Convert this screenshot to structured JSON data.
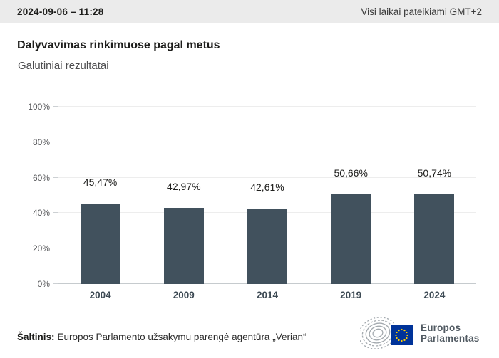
{
  "topbar": {
    "datetime": "2024-09-06 – 11:28",
    "timezone_note": "Visi laikai pateikiami GMT+2"
  },
  "header": {
    "title": "Dalyvavimas rinkimuose pagal metus",
    "subtitle": "Galutiniai rezultatai"
  },
  "chart_data": {
    "type": "bar",
    "title": "Dalyvavimas rinkimuose pagal metus",
    "subtitle": "Galutiniai rezultatai",
    "categories": [
      "2004",
      "2009",
      "2014",
      "2019",
      "2024"
    ],
    "values": [
      45.47,
      42.97,
      42.61,
      50.66,
      50.74
    ],
    "value_labels": [
      "45,47%",
      "42,97%",
      "42,61%",
      "50,66%",
      "50,74%"
    ],
    "xlabel": "",
    "ylabel": "",
    "ylim": [
      0,
      100
    ],
    "y_ticks": [
      {
        "v": 0,
        "label": "0%"
      },
      {
        "v": 20,
        "label": "20%"
      },
      {
        "v": 40,
        "label": "40%"
      },
      {
        "v": 60,
        "label": "60%"
      },
      {
        "v": 80,
        "label": "80%"
      },
      {
        "v": 100,
        "label": "100%"
      }
    ],
    "grid": true,
    "legend": false,
    "bar_color": "#41515d"
  },
  "footer": {
    "source_label": "Šaltinis:",
    "source_text": "Europos Parlamento užsakymu parengė agentūra „Verian“",
    "logo_line1": "Europos",
    "logo_line2": "Parlamentas"
  },
  "colors": {
    "bar": "#41515d",
    "topbar_bg": "#ebebeb",
    "eu_blue": "#003399",
    "eu_star": "#ffcc00",
    "hemicycle_gray": "#a3a9ae"
  }
}
